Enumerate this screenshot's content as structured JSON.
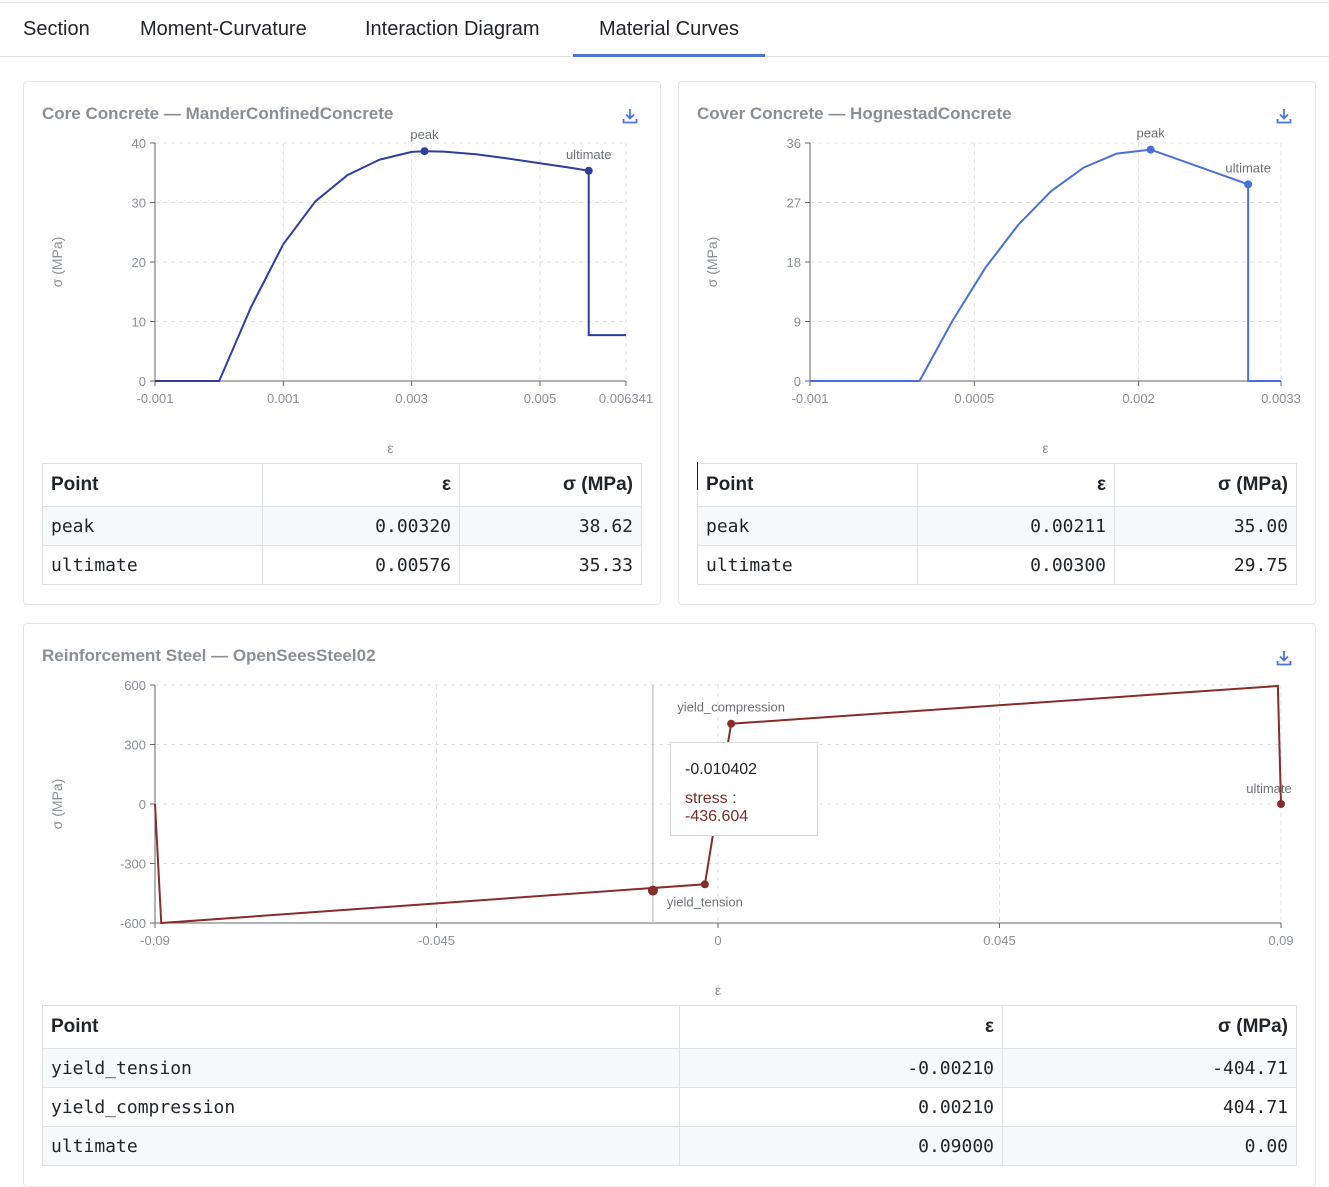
{
  "tabs": [
    {
      "label": "Section",
      "active": false
    },
    {
      "label": "Moment-Curvature",
      "active": false
    },
    {
      "label": "Interaction Diagram",
      "active": false
    },
    {
      "label": "Material Curves",
      "active": true
    }
  ],
  "core": {
    "title": "Core Concrete — ManderConfinedConcrete",
    "table": {
      "headers": [
        "Point",
        "ε",
        "σ (MPa)"
      ],
      "rows": [
        [
          "peak",
          "0.00320",
          "38.62"
        ],
        [
          "ultimate",
          "0.00576",
          "35.33"
        ]
      ]
    }
  },
  "cover": {
    "title": "Cover Concrete — HognestadConcrete",
    "table": {
      "headers": [
        "Point",
        "ε",
        "σ (MPa)"
      ],
      "rows": [
        [
          "peak",
          "0.00211",
          "35.00"
        ],
        [
          "ultimate",
          "0.00300",
          "29.75"
        ]
      ]
    }
  },
  "steel": {
    "title": "Reinforcement Steel — OpenSeesSteel02",
    "table": {
      "headers": [
        "Point",
        "ε",
        "σ (MPa)"
      ],
      "rows": [
        [
          "yield_tension",
          "-0.00210",
          "-404.71"
        ],
        [
          "yield_compression",
          "0.00210",
          "404.71"
        ],
        [
          "ultimate",
          "0.09000",
          "0.00"
        ]
      ]
    },
    "tooltip": {
      "x": "-0.010402",
      "label": "stress : -436.604"
    }
  },
  "icons": {
    "download": "download-icon"
  },
  "colors": {
    "tab_active": "#4a76d6",
    "core_line": "#2d3f9b",
    "cover_line": "#4a6fd9",
    "steel_line": "#862c2c"
  },
  "chart_data": [
    {
      "type": "line",
      "title": "Core Concrete — ManderConfinedConcrete",
      "xlabel": "ε",
      "ylabel": "σ (MPa)",
      "xlim": [
        -0.001,
        0.006341
      ],
      "ylim": [
        0,
        40
      ],
      "xticks": [
        "-0.001",
        "0.001",
        "0.003",
        "0.005",
        "0.006341"
      ],
      "yticks": [
        "0",
        "10",
        "20",
        "30",
        "40"
      ],
      "series": [
        {
          "x": [
            -0.001,
            0,
            0.0005,
            0.001,
            0.0015,
            0.002,
            0.0025,
            0.003,
            0.0032,
            0.0035,
            0.004,
            0.0045,
            0.005,
            0.0055,
            0.00576,
            0.00576,
            0.0058,
            0.006341
          ],
          "y": [
            0,
            0,
            12.5,
            23.0,
            30.2,
            34.6,
            37.2,
            38.5,
            38.62,
            38.55,
            38.1,
            37.4,
            36.6,
            35.8,
            35.33,
            7.7,
            7.7,
            7.7
          ]
        }
      ],
      "grid": true,
      "annotations": [
        {
          "label": "peak",
          "x": 0.0032,
          "y": 38.62
        },
        {
          "label": "ultimate",
          "x": 0.00576,
          "y": 35.33
        }
      ]
    },
    {
      "type": "line",
      "title": "Cover Concrete — HognestadConcrete",
      "xlabel": "ε",
      "ylabel": "σ (MPa)",
      "xlim": [
        -0.001,
        0.0033
      ],
      "ylim": [
        0,
        36
      ],
      "xticks": [
        "-0.001",
        "0.0005",
        "0.002",
        "0.0033"
      ],
      "yticks": [
        "0",
        "9",
        "18",
        "27",
        "36"
      ],
      "series": [
        {
          "x": [
            -0.001,
            0,
            0.0003,
            0.0006,
            0.0009,
            0.0012,
            0.0015,
            0.0018,
            0.00211,
            0.003,
            0.003,
            0.0033
          ],
          "y": [
            0,
            0,
            9.1,
            17.1,
            23.6,
            28.7,
            32.3,
            34.4,
            35.0,
            29.75,
            0,
            0
          ]
        }
      ],
      "grid": true,
      "annotations": [
        {
          "label": "peak",
          "x": 0.00211,
          "y": 35.0
        },
        {
          "label": "ultimate",
          "x": 0.003,
          "y": 29.75
        }
      ]
    },
    {
      "type": "line",
      "title": "Reinforcement Steel — OpenSeesSteel02",
      "xlabel": "ε",
      "ylabel": "σ (MPa)",
      "xlim": [
        -0.09,
        0.09
      ],
      "ylim": [
        -600,
        600
      ],
      "xticks": [
        "-0.09",
        "-0.045",
        "0",
        "0.045",
        "0.09"
      ],
      "yticks": [
        "-600",
        "-300",
        "0",
        "300",
        "600"
      ],
      "series": [
        {
          "name": "stress",
          "x": [
            -0.09,
            -0.089,
            -0.0021,
            0.0021,
            0.0895,
            0.09
          ],
          "y": [
            0,
            -600,
            -404.71,
            404.71,
            595,
            0
          ]
        }
      ],
      "grid": true,
      "annotations": [
        {
          "label": "yield_tension",
          "x": -0.0021,
          "y": -404.71
        },
        {
          "label": "yield_compression",
          "x": 0.0021,
          "y": 404.71
        },
        {
          "label": "ultimate",
          "x": 0.09,
          "y": 0
        }
      ],
      "hover": {
        "x": -0.010402,
        "y": -436.604
      }
    }
  ]
}
